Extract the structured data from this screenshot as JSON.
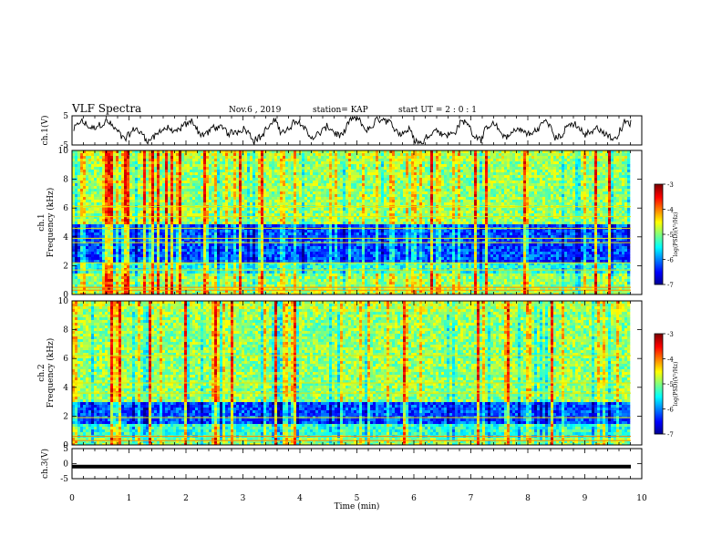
{
  "header": {
    "title": "VLF Spectra",
    "date": "Nov.6 , 2019",
    "station": "station= KAP",
    "start": "start UT = 2 : 0 : 1"
  },
  "chart_data": [
    {
      "type": "line",
      "name": "ch1-waveform",
      "ylabel": "ch.1(V)",
      "ylim": [
        -5,
        5
      ],
      "y_ticks": [
        "5",
        "-5"
      ],
      "xlim": [
        0,
        10
      ],
      "note_series": "noisy oscillating voltage around 0 V"
    },
    {
      "type": "heatmap",
      "name": "ch1-spectrogram",
      "ylabel": "ch.1",
      "ylabel2": "Frequency (kHz)",
      "ylim": [
        0,
        10
      ],
      "y_ticks": [
        "0",
        "2",
        "4",
        "6",
        "8",
        "10"
      ],
      "xlim": [
        0,
        10
      ],
      "colorbar": {
        "label": "log(PSD)(V²/Hz)",
        "range": [
          -7,
          -3
        ],
        "ticks": [
          "-3",
          "-4",
          "-5",
          "-6",
          "-7"
        ]
      }
    },
    {
      "type": "heatmap",
      "name": "ch2-spectrogram",
      "ylabel": "ch.2",
      "ylabel2": "Frequency (kHz)",
      "ylim": [
        0,
        10
      ],
      "y_ticks": [
        "0",
        "2",
        "4",
        "6",
        "8",
        "10"
      ],
      "xlim": [
        0,
        10
      ],
      "colorbar": {
        "label": "log(PSD)(V²/Hz)",
        "range": [
          -7,
          -3
        ],
        "ticks": [
          "-3",
          "-4",
          "-5",
          "-6",
          "-7"
        ]
      }
    },
    {
      "type": "line",
      "name": "ch3-waveform",
      "ylabel": "ch.3(V)",
      "ylim": [
        -5,
        5
      ],
      "y_ticks": [
        "5",
        "0",
        "-5"
      ],
      "xlim": [
        0,
        10
      ],
      "values_constant": -1,
      "xlabel": "Time (min)",
      "x_ticks": [
        "0",
        "1",
        "2",
        "3",
        "4",
        "5",
        "6",
        "7",
        "8",
        "9",
        "10"
      ]
    }
  ]
}
